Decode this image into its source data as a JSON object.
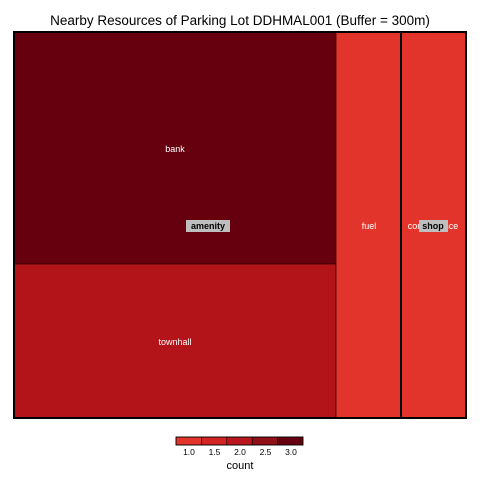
{
  "chart_data": {
    "type": "treemap",
    "title": "Nearby Resources of Parking Lot DDHMAL001 (Buffer = 300m)",
    "groups": [
      {
        "name": "amenity",
        "items": [
          {
            "name": "bank",
            "count": 3
          },
          {
            "name": "townhall",
            "count": 2
          },
          {
            "name": "fuel",
            "count": 1
          }
        ]
      },
      {
        "name": "shop",
        "items": [
          {
            "name": "convenience",
            "count": 1
          }
        ]
      }
    ],
    "legend": {
      "title": "count",
      "ticks": [
        "1.0",
        "1.5",
        "2.0",
        "2.5",
        "3.0"
      ],
      "range": [
        1,
        3
      ],
      "colors": [
        "#E3342B",
        "#D32424",
        "#B9161D",
        "#901017",
        "#66000F"
      ],
      "placement": "bottom"
    },
    "colors": {
      "low": "#E3342B",
      "mid": "#B31419",
      "high": "#66000F"
    }
  }
}
